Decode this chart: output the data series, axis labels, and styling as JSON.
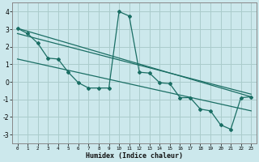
{
  "xlabel": "Humidex (Indice chaleur)",
  "bg_color": "#cce8ec",
  "grid_color": "#aacccc",
  "line_color": "#1a6e64",
  "xlim": [
    -0.5,
    23.5
  ],
  "ylim": [
    -3.5,
    4.5
  ],
  "xticks": [
    0,
    1,
    2,
    3,
    4,
    5,
    6,
    7,
    8,
    9,
    10,
    11,
    12,
    13,
    14,
    15,
    16,
    17,
    18,
    19,
    20,
    21,
    22,
    23
  ],
  "yticks": [
    -3,
    -2,
    -1,
    0,
    1,
    2,
    3,
    4
  ],
  "line1_x": [
    0,
    1,
    2,
    3,
    4,
    5,
    6,
    7,
    8,
    9,
    10,
    11,
    12,
    13,
    14,
    15,
    16,
    17,
    18,
    19,
    20,
    21,
    22,
    23
  ],
  "line1_y": [
    3.05,
    2.75,
    2.2,
    1.35,
    1.3,
    0.55,
    -0.05,
    -0.35,
    -0.35,
    -0.35,
    4.0,
    3.75,
    0.55,
    0.5,
    -0.05,
    -0.1,
    -0.9,
    -0.9,
    -1.55,
    -1.65,
    -2.45,
    -2.7,
    -0.9,
    -0.85
  ],
  "line2_x": [
    0,
    23
  ],
  "line2_y": [
    3.05,
    -0.85
  ],
  "line3_x": [
    0,
    23
  ],
  "line3_y": [
    2.75,
    -0.7
  ],
  "line4_x": [
    0,
    23
  ],
  "line4_y": [
    1.3,
    -1.65
  ]
}
